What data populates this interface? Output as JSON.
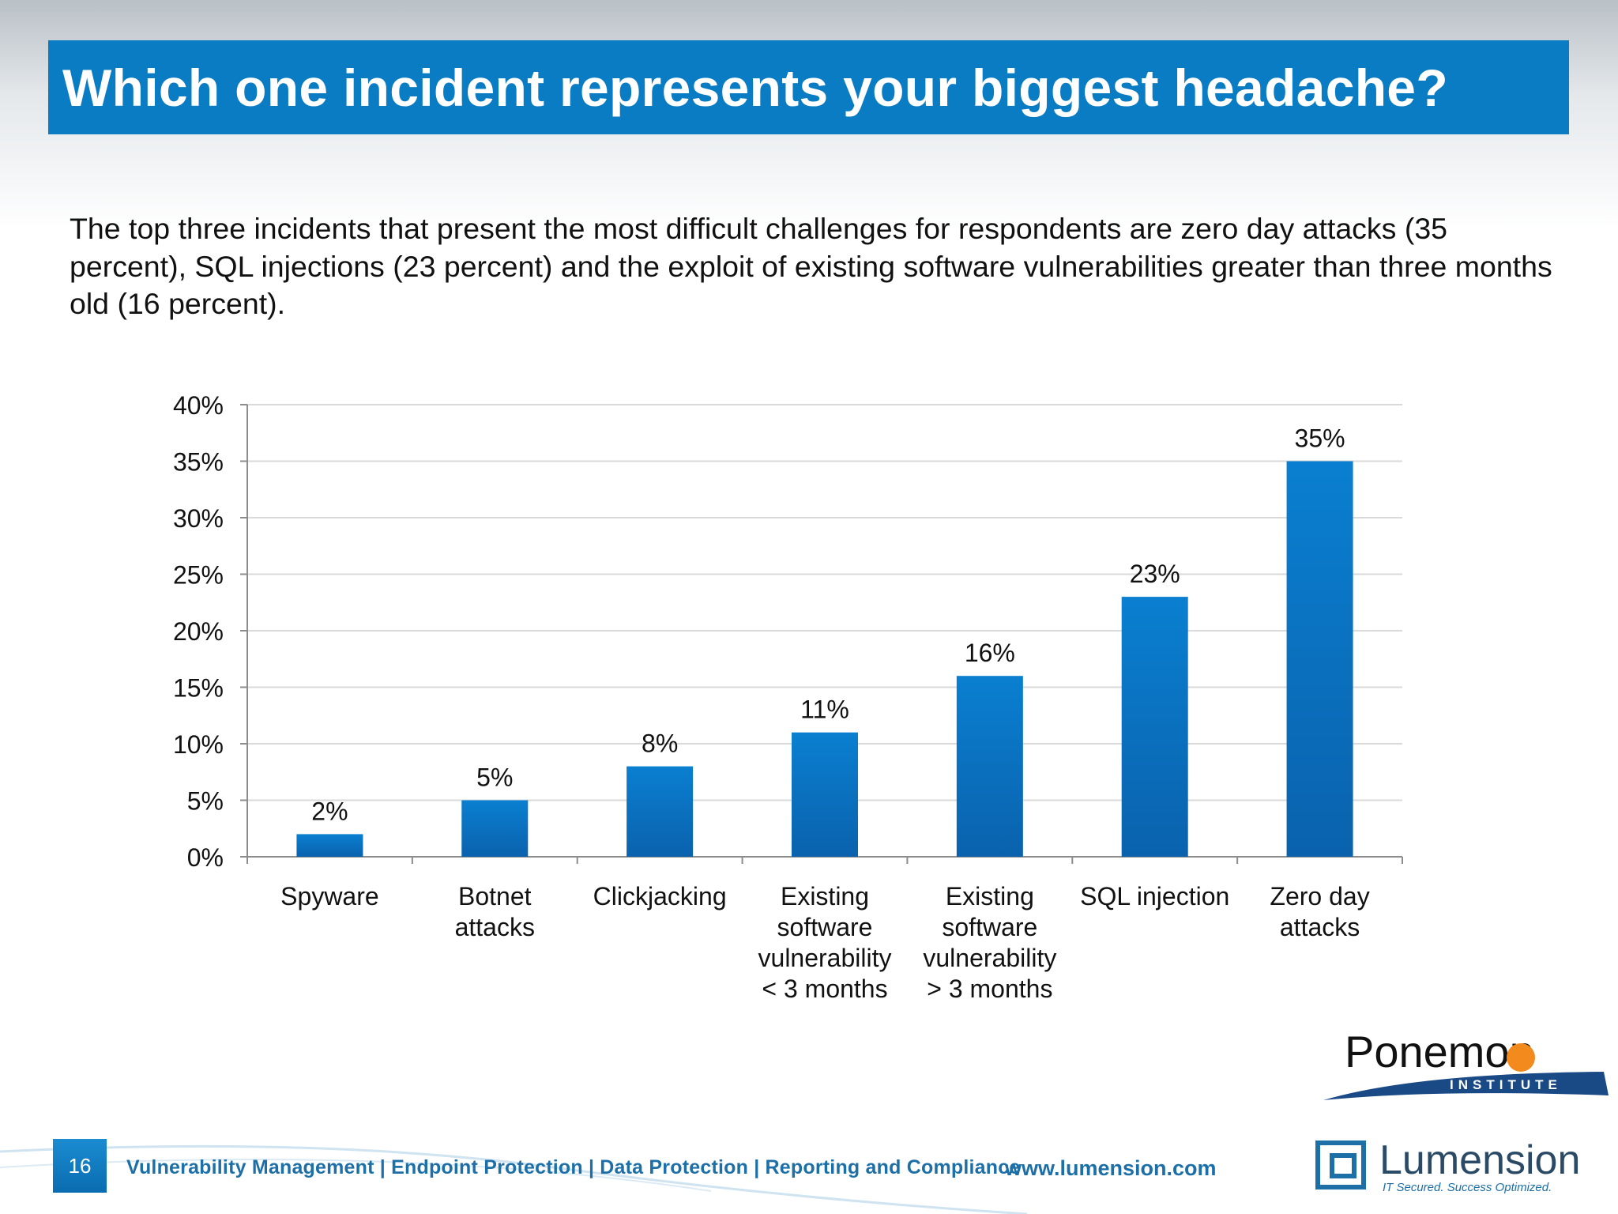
{
  "slide": {
    "title": "Which one incident represents your biggest headache?",
    "subtitle": "The top three incidents that present the most difficult challenges for respondents are zero day attacks (35 percent), SQL injections (23 percent) and the exploit of existing software vulnerabilities greater than three months old (16 percent).",
    "page_number": "16"
  },
  "footer": {
    "categories_text": "Vulnerability Management | Endpoint Protection | Data Protection | Reporting and Compliance",
    "url": "www.lumension.com"
  },
  "logos": {
    "ponemon": "Ponemon",
    "ponemon_sub": "INSTITUTE",
    "lumension": "Lumension",
    "lumension_tagline": "IT Secured. Success Optimized."
  },
  "chart_data": {
    "type": "bar",
    "categories": [
      [
        "Spyware"
      ],
      [
        "Botnet",
        "attacks"
      ],
      [
        "Clickjacking"
      ],
      [
        "Existing",
        "software",
        "vulnerability",
        "< 3 months"
      ],
      [
        "Existing",
        "software",
        "vulnerability",
        "> 3 months"
      ],
      [
        "SQL injection"
      ],
      [
        "Zero day",
        "attacks"
      ]
    ],
    "values": [
      2,
      5,
      8,
      11,
      16,
      23,
      35
    ],
    "data_labels": [
      "2%",
      "5%",
      "8%",
      "11%",
      "16%",
      "23%",
      "35%"
    ],
    "y_ticks": [
      "0%",
      "5%",
      "10%",
      "15%",
      "20%",
      "25%",
      "30%",
      "35%",
      "40%"
    ],
    "ylim": [
      0,
      40
    ],
    "grid": true,
    "bar_color": "#0a7fd0",
    "title": "",
    "xlabel": "",
    "ylabel": ""
  }
}
